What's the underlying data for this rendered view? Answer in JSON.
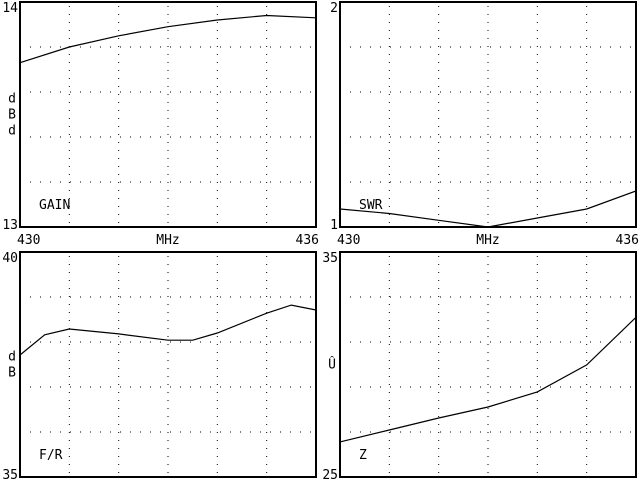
{
  "chart_data": [
    {
      "type": "line",
      "label": "GAIN",
      "ylabel": "dBd",
      "xlabel": "MHz",
      "xlim": [
        430,
        436
      ],
      "ylim": [
        13,
        14
      ],
      "x_ticks": [
        "430",
        "436"
      ],
      "y_ticks": [
        "13",
        "14"
      ],
      "grid": true,
      "x": [
        430,
        431,
        432,
        433,
        434,
        435,
        436
      ],
      "y": [
        13.73,
        13.8,
        13.85,
        13.89,
        13.92,
        13.94,
        13.93
      ]
    },
    {
      "type": "line",
      "label": "SWR",
      "ylabel": "",
      "xlabel": "MHz",
      "xlim": [
        430,
        436
      ],
      "ylim": [
        1,
        2
      ],
      "x_ticks": [
        "430",
        "436"
      ],
      "y_ticks": [
        "1",
        "2"
      ],
      "grid": true,
      "x": [
        430,
        431,
        432,
        433,
        434,
        435,
        436
      ],
      "y": [
        1.08,
        1.06,
        1.03,
        1.0,
        1.04,
        1.08,
        1.16
      ]
    },
    {
      "type": "line",
      "label": "F/R",
      "ylabel": "dB",
      "xlabel": "",
      "xlim": [
        430,
        436
      ],
      "ylim": [
        35,
        40
      ],
      "x_ticks": [],
      "y_ticks": [
        "35",
        "40"
      ],
      "grid": true,
      "x": [
        430,
        430.5,
        431,
        432,
        433,
        433.5,
        434,
        435,
        435.5,
        436
      ],
      "y": [
        37.71,
        38.16,
        38.29,
        38.18,
        38.04,
        38.04,
        38.2,
        38.64,
        38.82,
        38.71
      ]
    },
    {
      "type": "line",
      "label": "Z",
      "ylabel": "Û",
      "xlabel": "",
      "xlim": [
        430,
        436
      ],
      "ylim": [
        25,
        35
      ],
      "x_ticks": [],
      "y_ticks": [
        "25",
        "35"
      ],
      "grid": true,
      "x": [
        430,
        431,
        432,
        433,
        434,
        435,
        436
      ],
      "y": [
        26.56,
        27.09,
        27.62,
        28.11,
        28.78,
        29.98,
        32.1
      ]
    }
  ]
}
